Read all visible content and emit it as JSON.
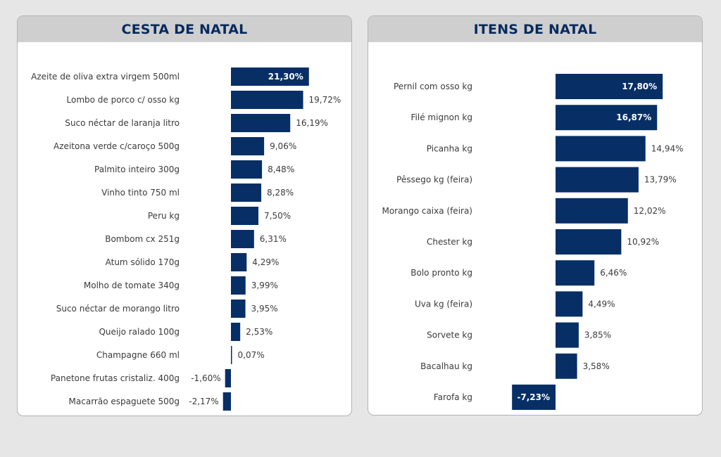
{
  "colors": {
    "bar": "#072f66",
    "header_bg": "#cfcfcf",
    "title": "#072a5e",
    "page_bg": "#e6e6e6"
  },
  "chart_data": [
    {
      "type": "bar",
      "orientation": "horizontal",
      "title": "CESTA DE NATAL",
      "categories": [
        "Azeite de oliva extra virgem 500ml",
        "Lombo de porco c/ osso kg",
        "Suco néctar de laranja litro",
        "Azeitona verde c/caroço 500g",
        "Palmito inteiro 300g",
        "Vinho tinto 750 ml",
        "Peru kg",
        "Bombom cx 251g",
        "Atum sólido 170g",
        "Molho de tomate 340g",
        "Suco néctar de morango litro",
        "Queijo ralado 100g",
        "Champagne 660 ml",
        "Panetone frutas cristaliz. 400g",
        "Macarrão espaguete 500g"
      ],
      "values": [
        21.3,
        19.72,
        16.19,
        9.06,
        8.48,
        8.28,
        7.5,
        6.31,
        4.29,
        3.99,
        3.95,
        2.53,
        0.07,
        -1.6,
        -2.17
      ],
      "data_labels": [
        "21,30%",
        "19,72%",
        "16,19%",
        "9,06%",
        "8,48%",
        "8,28%",
        "7,50%",
        "6,31%",
        "4,29%",
        "3,99%",
        "3,95%",
        "2,53%",
        "0,07%",
        "-1,60%",
        "-2,17%"
      ],
      "label_inside": [
        true,
        false,
        false,
        false,
        false,
        false,
        false,
        false,
        false,
        false,
        false,
        false,
        false,
        false,
        false
      ],
      "xlim": [
        -2.17,
        21.3
      ]
    },
    {
      "type": "bar",
      "orientation": "horizontal",
      "title": "ITENS DE NATAL",
      "categories": [
        "Pernil com osso kg",
        "Filé mignon kg",
        "Picanha kg",
        "Pêssego kg (feira)",
        "Morango caixa (feira)",
        "Chester kg",
        "Bolo pronto kg",
        "Uva kg (feira)",
        "Sorvete kg",
        "Bacalhau kg",
        "Farofa kg"
      ],
      "values": [
        17.8,
        16.87,
        14.94,
        13.79,
        12.02,
        10.92,
        6.46,
        4.49,
        3.85,
        3.58,
        -7.23
      ],
      "data_labels": [
        "17,80%",
        "16,87%",
        "14,94%",
        "13,79%",
        "12,02%",
        "10,92%",
        "6,46%",
        "4,49%",
        "3,85%",
        "3,58%",
        "-7,23%"
      ],
      "label_inside": [
        true,
        true,
        false,
        false,
        false,
        false,
        false,
        false,
        false,
        false,
        true
      ],
      "xlim": [
        -7.23,
        17.8
      ]
    }
  ]
}
